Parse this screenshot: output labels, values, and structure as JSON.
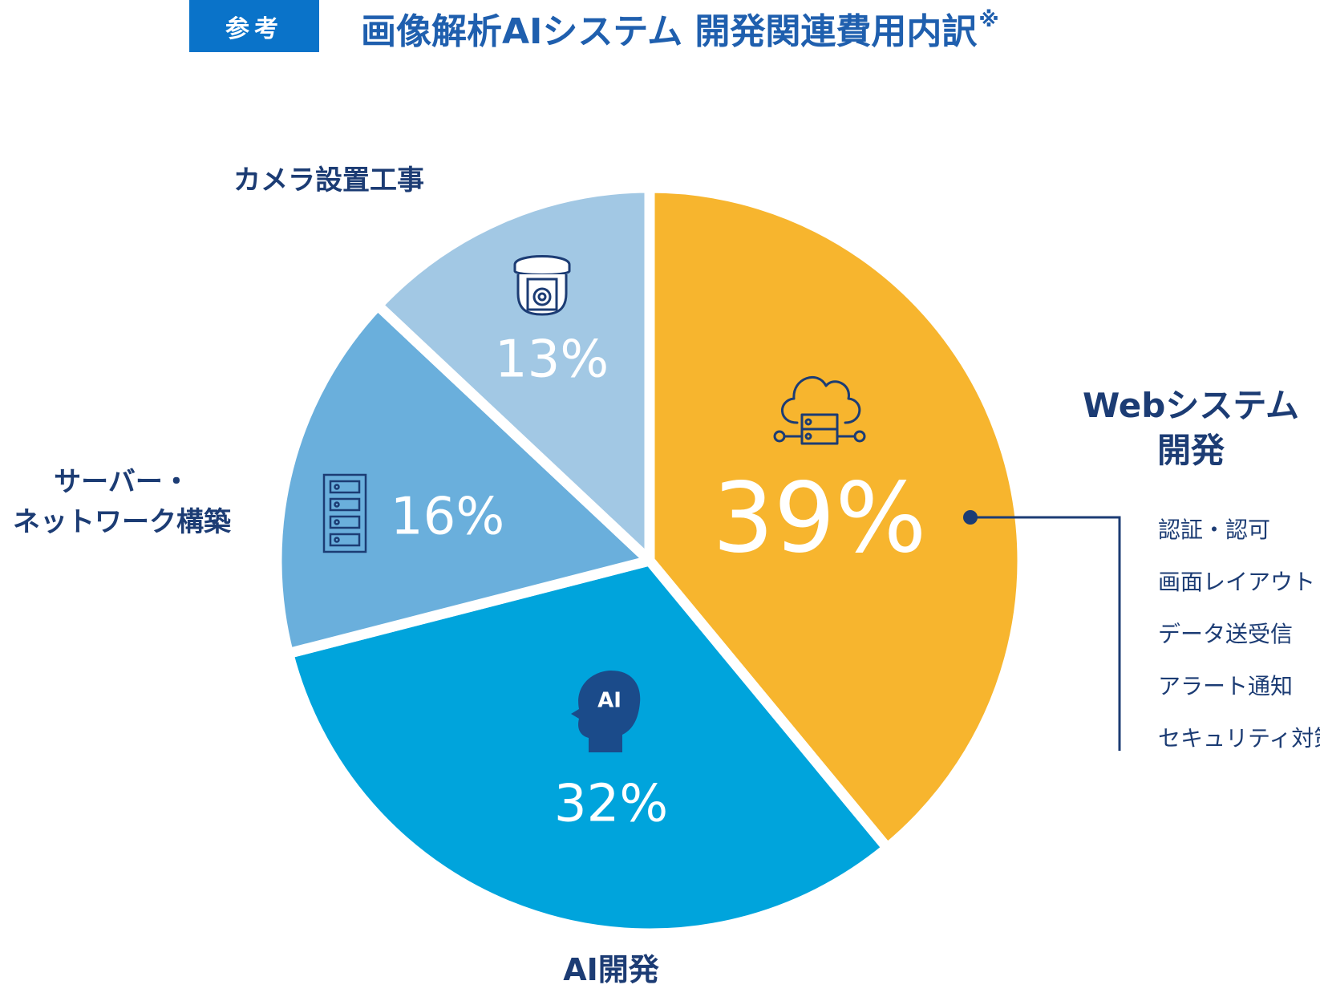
{
  "header": {
    "badge": "参考",
    "title": "画像解析AIシステム 開発関連費用内訳",
    "title_mark": "※"
  },
  "chart_data": {
    "type": "pie",
    "start": "12 o'clock",
    "direction": "clockwise",
    "slices": [
      {
        "id": "web",
        "name_lines": [
          "Webシステム",
          "開発"
        ],
        "value": 39,
        "label": "39%",
        "color": "#f7b52e",
        "icon": "cloud-server-icon"
      },
      {
        "id": "ai",
        "name_lines": [
          "AI開発"
        ],
        "value": 32,
        "label": "32%",
        "color": "#00a4dc",
        "icon": "ai-head-icon",
        "icon_text": "AI"
      },
      {
        "id": "server",
        "name_lines": [
          "サーバー・",
          "ネットワーク構築"
        ],
        "value": 16,
        "label": "16%",
        "color": "#6aafdc",
        "icon": "server-rack-icon"
      },
      {
        "id": "camera",
        "name_lines": [
          "カメラ設置工事"
        ],
        "value": 13,
        "label": "13%",
        "color": "#a2c8e4",
        "icon": "security-camera-icon"
      }
    ],
    "web_breakdown": [
      "認証・認可",
      "画面レイアウト",
      "データ送受信",
      "アラート通知",
      "セキュリティ対策"
    ],
    "line_color": "#1c3c74"
  }
}
